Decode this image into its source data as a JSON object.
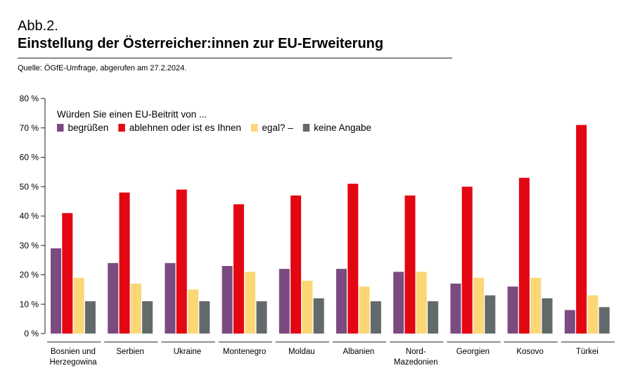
{
  "header": {
    "figure_label": "Abb.2.",
    "title": "Einstellung der Österreicher:innen zur EU-Erweiterung",
    "source": "Quelle: ÖGfE-Umfrage, abgerufen am 27.2.2024."
  },
  "chart_data": {
    "type": "bar",
    "question": "Würden Sie einen EU-Beitritt von ...",
    "categories": [
      [
        "Bosnien und",
        "Herzegowina"
      ],
      [
        "Serbien"
      ],
      [
        "Ukraine"
      ],
      [
        "Montenegro"
      ],
      [
        "Moldau"
      ],
      [
        "Albanien"
      ],
      [
        "Nord-",
        "Mazedonien"
      ],
      [
        "Georgien"
      ],
      [
        "Kosovo"
      ],
      [
        "Türkei"
      ]
    ],
    "series": [
      {
        "name": "begrüßen",
        "color": "#7b4b80",
        "values": [
          29,
          24,
          24,
          23,
          22,
          22,
          21,
          17,
          16,
          8
        ]
      },
      {
        "name": "ablehnen oder ist es Ihnen",
        "color": "#e30613",
        "values": [
          41,
          48,
          49,
          44,
          47,
          51,
          47,
          50,
          53,
          71
        ]
      },
      {
        "name": "egal? –",
        "color": "#fbd776",
        "values": [
          19,
          17,
          15,
          21,
          18,
          16,
          21,
          19,
          19,
          13
        ]
      },
      {
        "name": "keine Angabe",
        "color": "#636a6b",
        "values": [
          11,
          11,
          11,
          11,
          12,
          11,
          11,
          13,
          12,
          9
        ]
      }
    ],
    "ylim": [
      0,
      80
    ],
    "yticks": [
      0,
      10,
      20,
      30,
      40,
      50,
      60,
      70,
      80
    ],
    "ytick_labels": [
      "0 %",
      "10 %",
      "20 %",
      "30 %",
      "40 %",
      "50 %",
      "60 %",
      "70 %",
      "80 %"
    ],
    "xlabel": "",
    "ylabel": "",
    "legend_position": "top-left"
  }
}
